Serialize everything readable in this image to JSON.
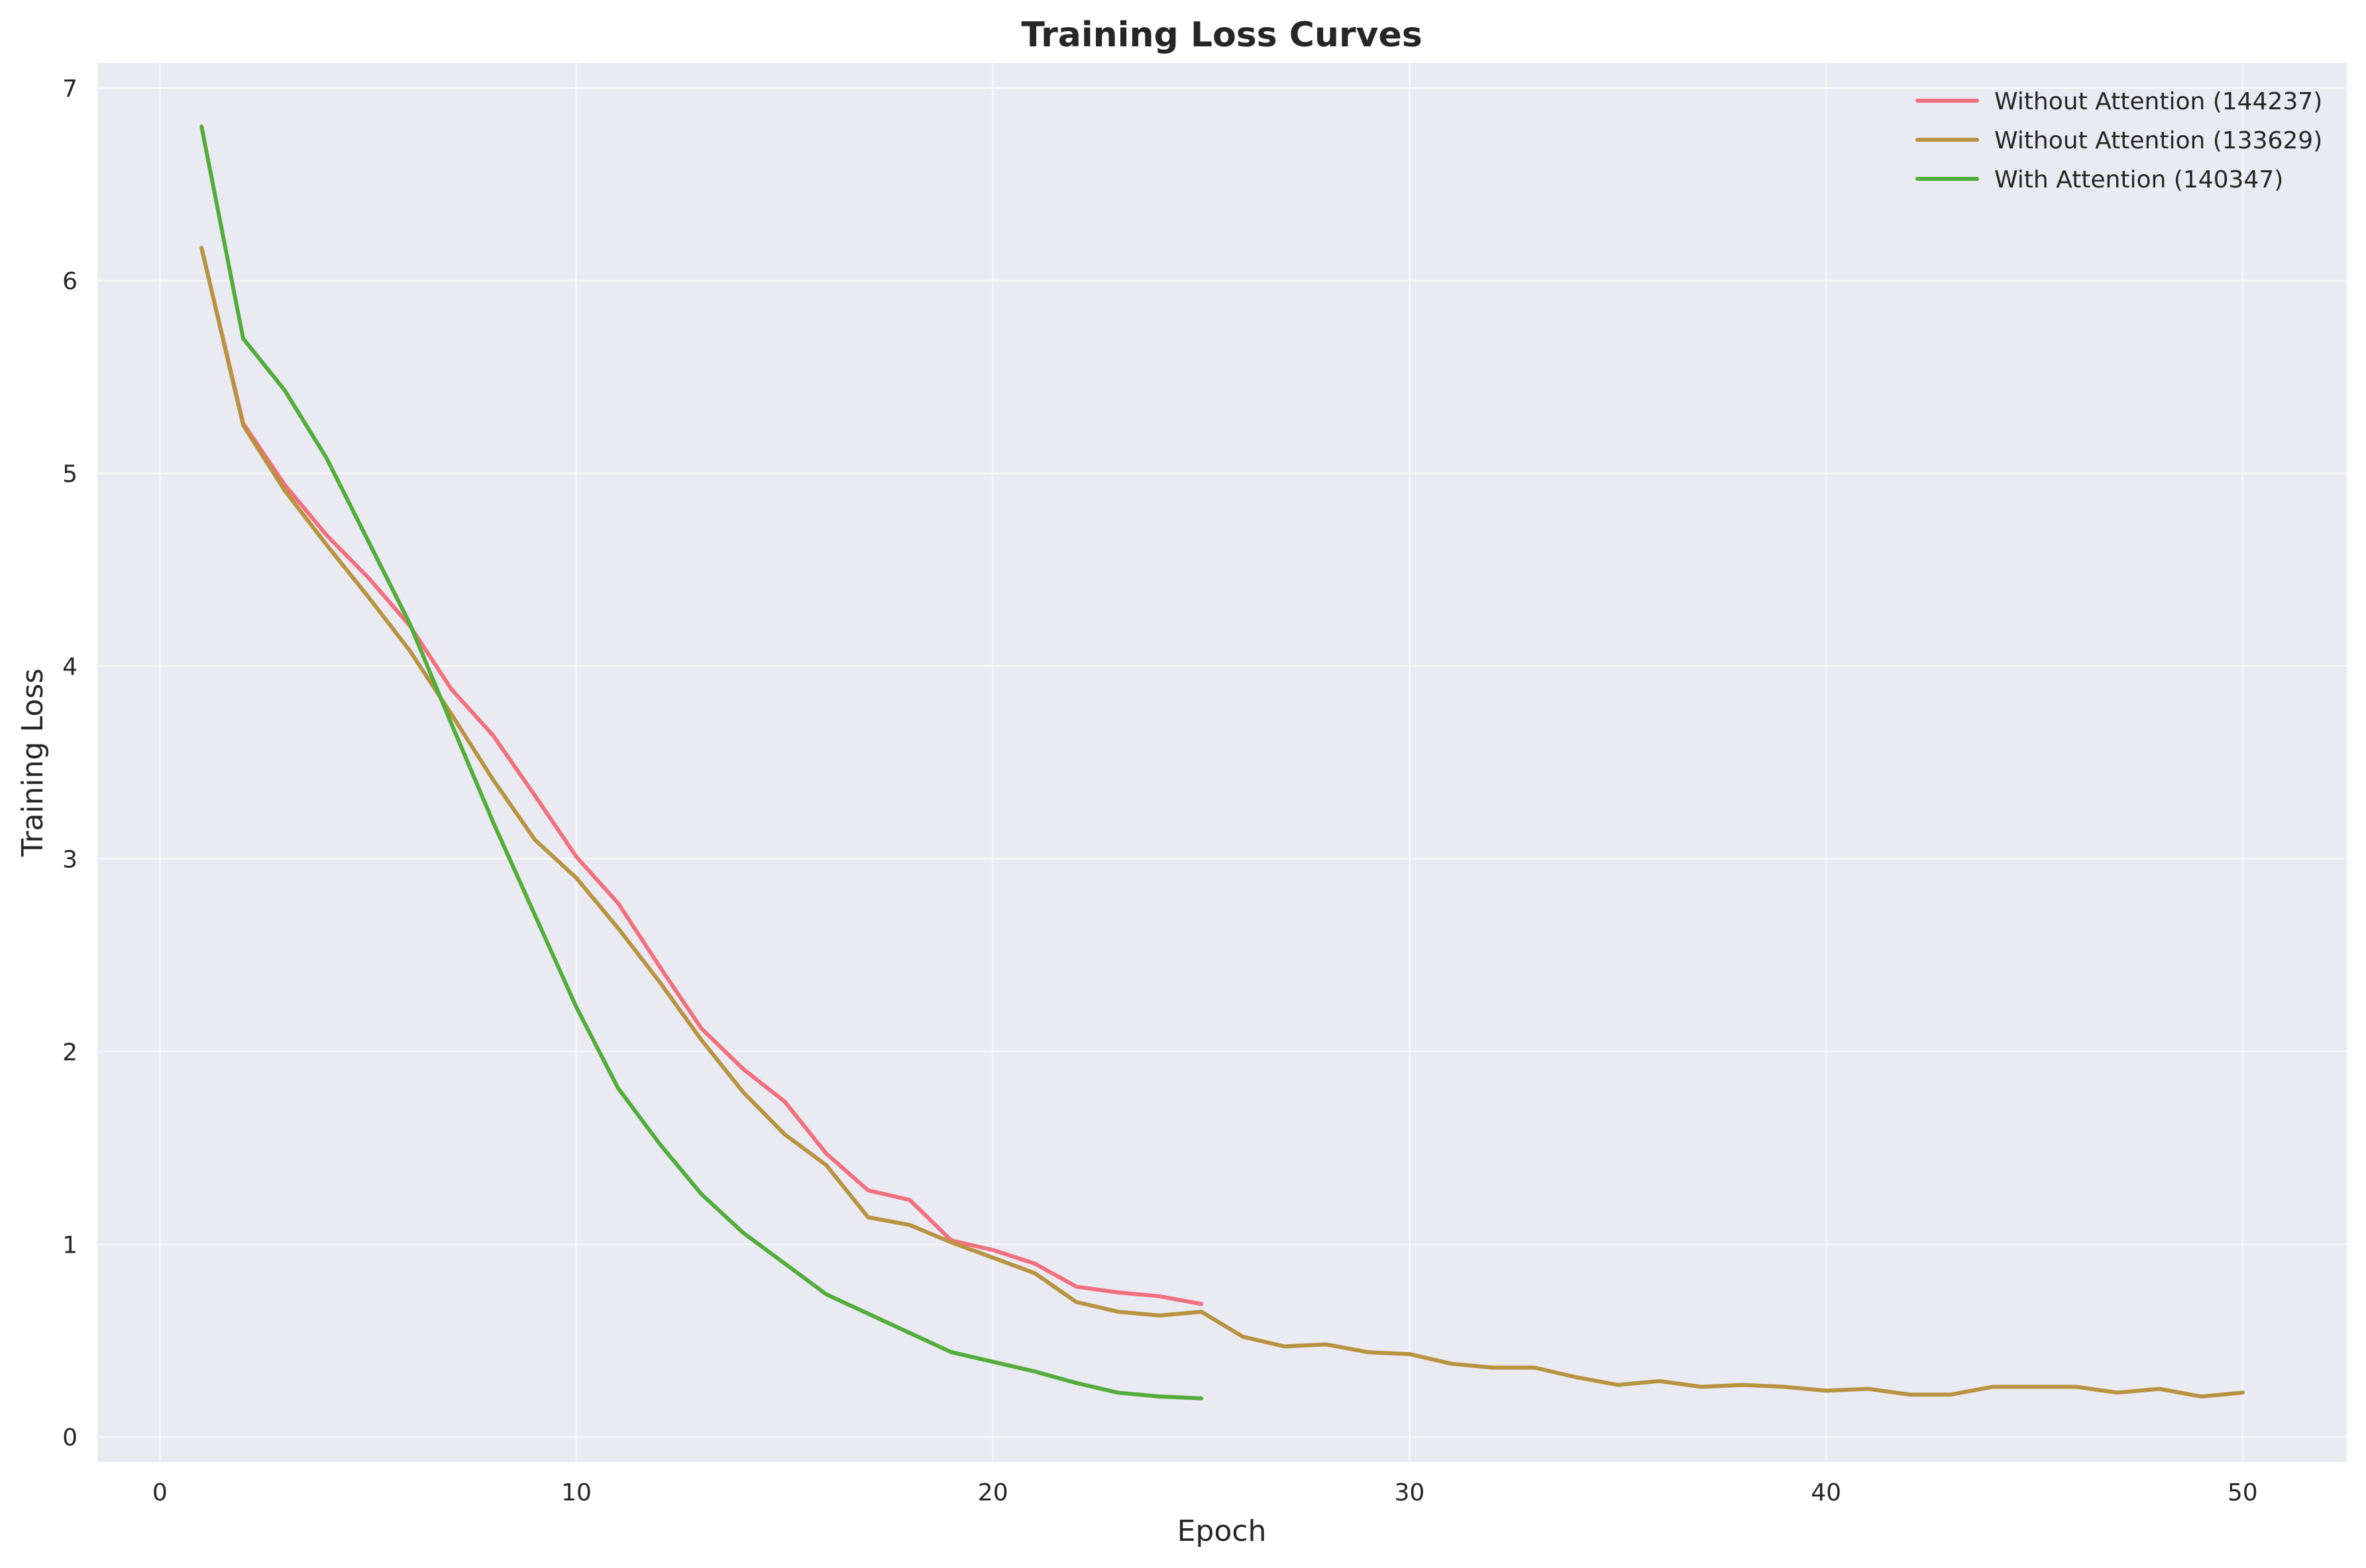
{
  "chart_data": {
    "type": "line",
    "title": "Training Loss Curves",
    "xlabel": "Epoch",
    "ylabel": "Training Loss",
    "xlim": [
      -1.5,
      52.5
    ],
    "ylim": [
      -0.13,
      7.13
    ],
    "xticks": [
      0,
      10,
      20,
      30,
      40,
      50
    ],
    "yticks": [
      0,
      1,
      2,
      3,
      4,
      5,
      6,
      7
    ],
    "grid": true,
    "legend_position": "top-right",
    "series": [
      {
        "name": "Without Attention (144237)",
        "color": "#f2707e",
        "x": [
          1,
          2,
          3,
          4,
          5,
          6,
          7,
          8,
          9,
          10,
          11,
          12,
          13,
          14,
          15,
          16,
          17,
          18,
          19,
          20,
          21,
          22,
          23,
          24,
          25
        ],
        "y": [
          6.17,
          5.26,
          4.94,
          4.68,
          4.46,
          4.21,
          3.88,
          3.64,
          3.33,
          3.01,
          2.77,
          2.44,
          2.12,
          1.91,
          1.74,
          1.47,
          1.28,
          1.23,
          1.02,
          0.97,
          0.9,
          0.78,
          0.75,
          0.73,
          0.69
        ]
      },
      {
        "name": "Without Attention (133629)",
        "color": "#b89340",
        "x": [
          1,
          2,
          3,
          4,
          5,
          6,
          7,
          8,
          9,
          10,
          11,
          12,
          13,
          14,
          15,
          16,
          17,
          18,
          19,
          20,
          21,
          22,
          23,
          24,
          25,
          26,
          27,
          28,
          29,
          30,
          31,
          32,
          33,
          34,
          35,
          36,
          37,
          38,
          39,
          40,
          41,
          42,
          43,
          44,
          45,
          46,
          47,
          48,
          49,
          50
        ],
        "y": [
          6.17,
          5.25,
          4.91,
          4.63,
          4.36,
          4.08,
          3.75,
          3.41,
          3.1,
          2.9,
          2.64,
          2.36,
          2.06,
          1.79,
          1.57,
          1.41,
          1.14,
          1.1,
          1.01,
          0.93,
          0.85,
          0.7,
          0.65,
          0.63,
          0.65,
          0.52,
          0.47,
          0.48,
          0.44,
          0.43,
          0.38,
          0.36,
          0.36,
          0.31,
          0.27,
          0.29,
          0.26,
          0.27,
          0.26,
          0.24,
          0.25,
          0.22,
          0.22,
          0.26,
          0.26,
          0.26,
          0.23,
          0.25,
          0.21,
          0.23
        ]
      },
      {
        "name": "With Attention (140347)",
        "color": "#52ad3a",
        "x": [
          1,
          2,
          3,
          4,
          5,
          6,
          7,
          8,
          9,
          10,
          11,
          12,
          13,
          14,
          15,
          16,
          17,
          18,
          19,
          20,
          21,
          22,
          23,
          24,
          25
        ],
        "y": [
          6.8,
          5.7,
          5.43,
          5.08,
          4.65,
          4.22,
          3.7,
          3.19,
          2.71,
          2.23,
          1.81,
          1.52,
          1.26,
          1.06,
          0.9,
          0.74,
          0.64,
          0.54,
          0.44,
          0.39,
          0.34,
          0.28,
          0.23,
          0.21,
          0.2
        ]
      }
    ]
  }
}
